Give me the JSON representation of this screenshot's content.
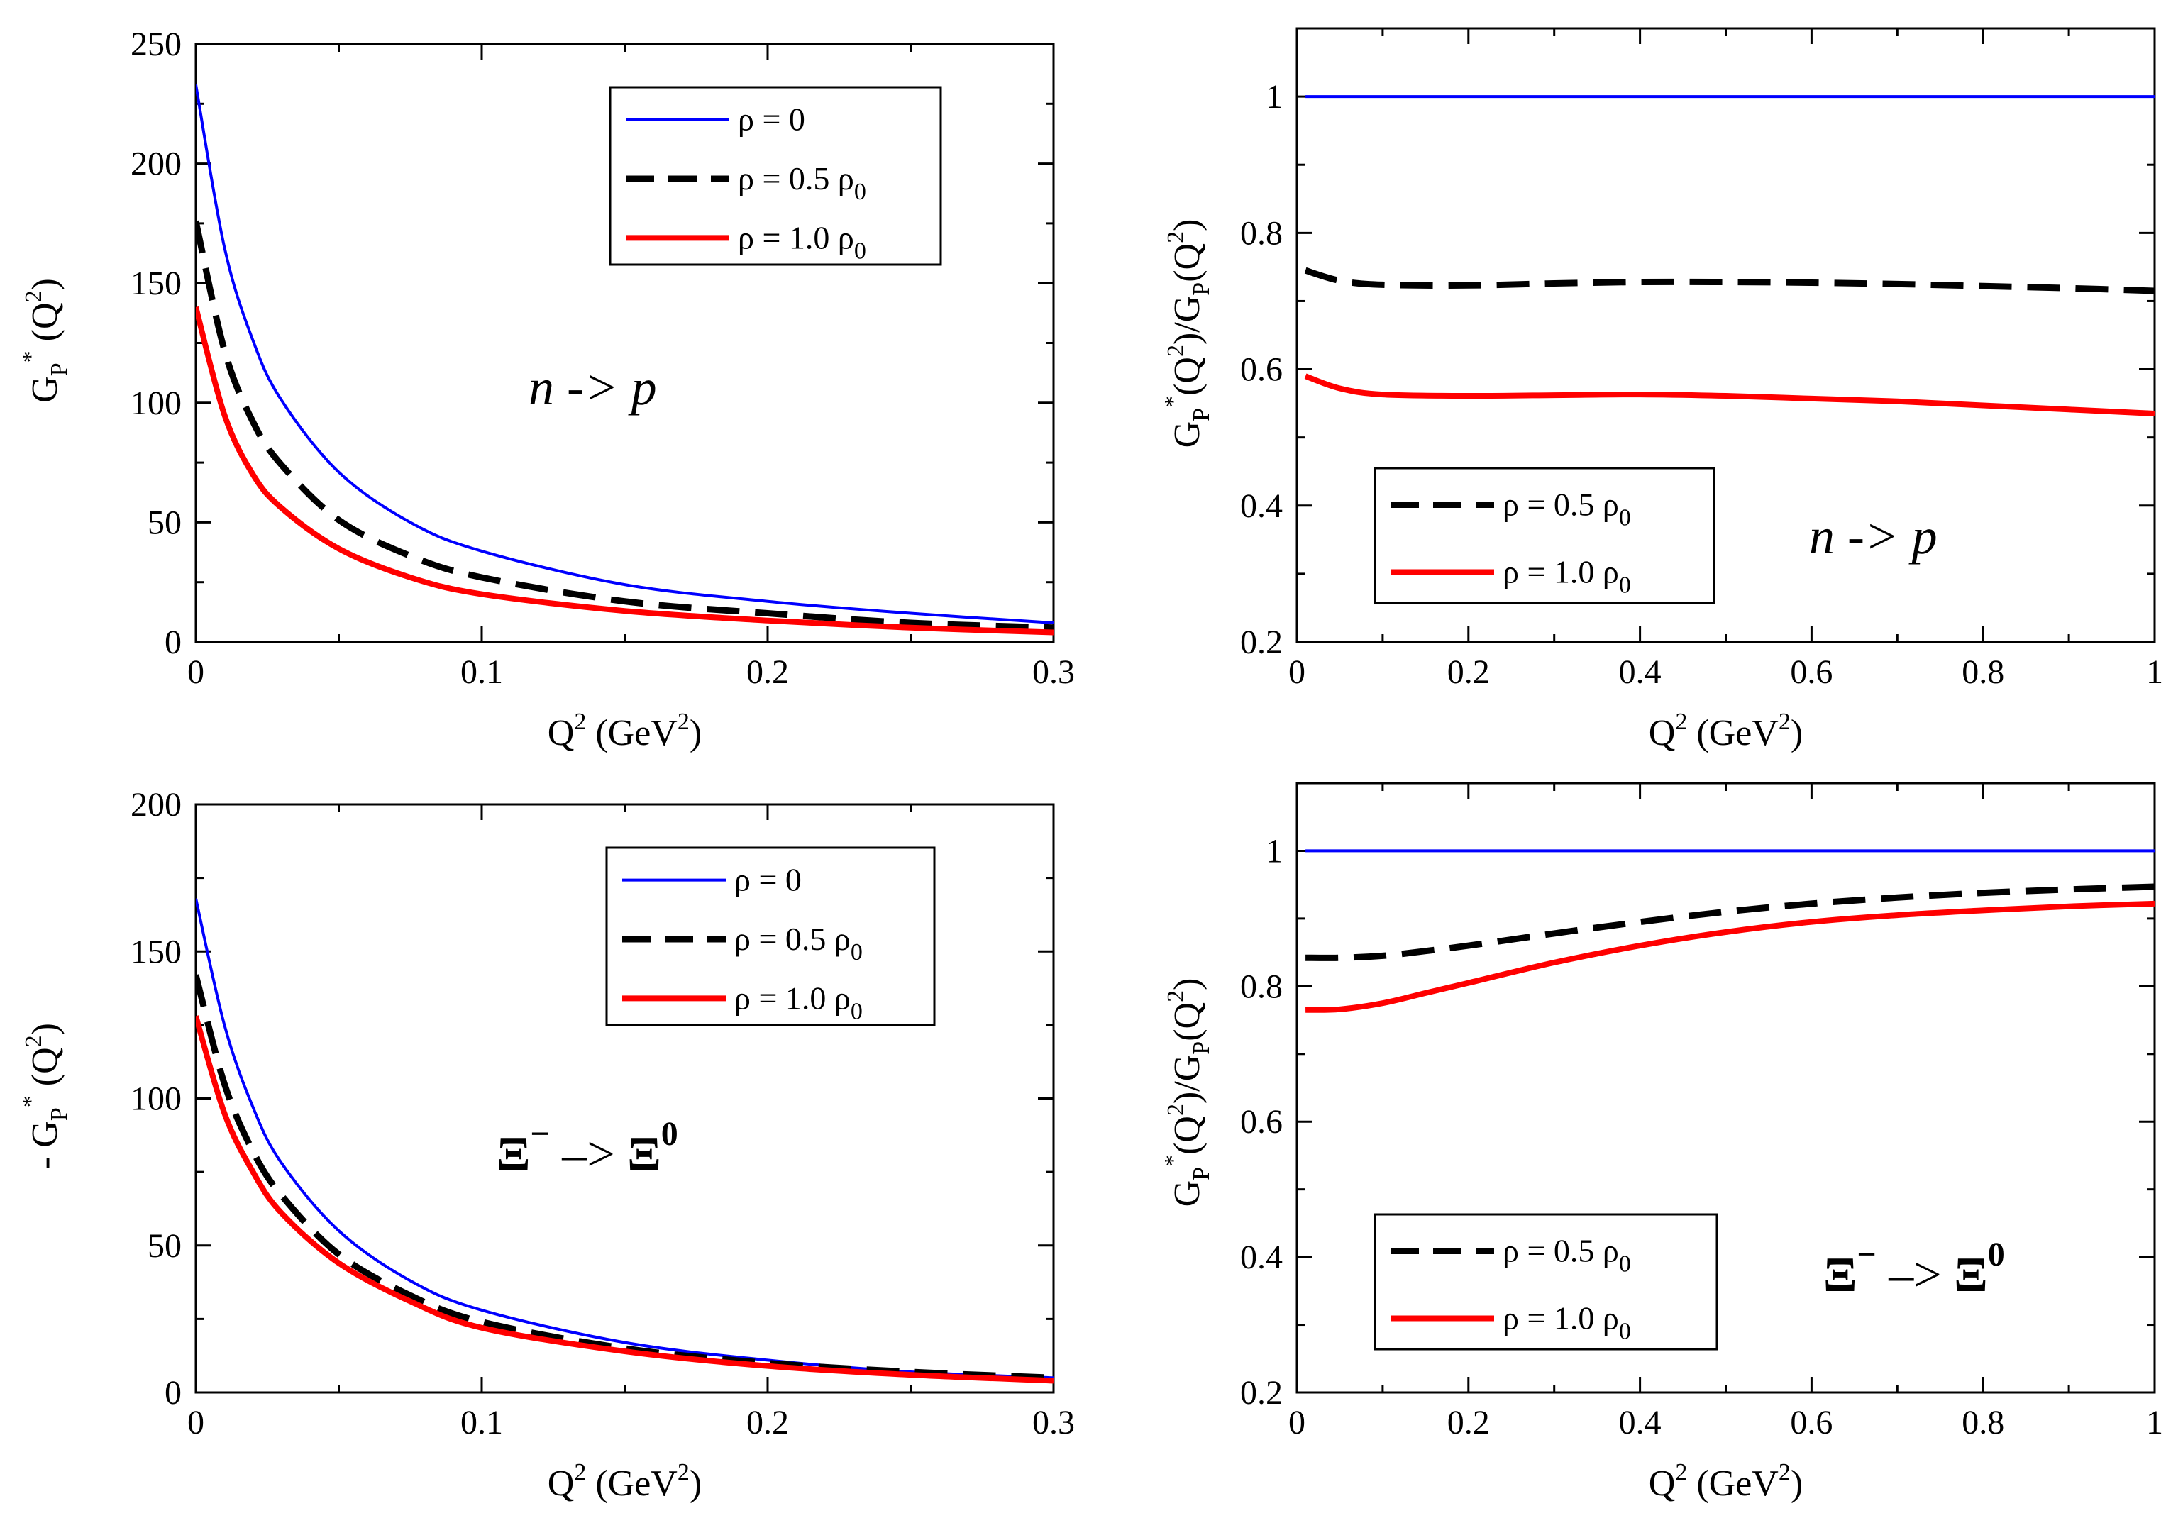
{
  "colors": {
    "rho0": "#0000ff",
    "rho05": "#000000",
    "rho10": "#ff0000"
  },
  "chart_data": [
    {
      "type": "line",
      "id": "top-left",
      "xlabel": "Q2 (GeV2)",
      "ylabel": "GP* (Q2)",
      "xlim": [
        0,
        0.3
      ],
      "ylim": [
        0,
        250
      ],
      "xticks": [
        "0",
        "0.1",
        "0.2",
        "0.3"
      ],
      "yticks": [
        "0",
        "50",
        "100",
        "150",
        "200",
        "250"
      ],
      "annotation": "n -> p",
      "legend": [
        "ρ = 0",
        "ρ = 0.5 ρ0",
        "ρ = 1.0 ρ0"
      ],
      "series": [
        {
          "name": "ρ = 0",
          "x": [
            0.0,
            0.01,
            0.02,
            0.03,
            0.05,
            0.075,
            0.1,
            0.15,
            0.2,
            0.25,
            0.3
          ],
          "y": [
            233,
            165,
            126,
            101,
            71,
            50,
            38,
            24,
            17,
            12,
            8
          ]
        },
        {
          "name": "ρ = 0.5 ρ0",
          "x": [
            0.0,
            0.01,
            0.02,
            0.03,
            0.05,
            0.075,
            0.1,
            0.15,
            0.2,
            0.25,
            0.3
          ],
          "y": [
            176,
            122,
            92,
            74,
            51,
            36,
            27,
            17,
            12,
            8,
            6
          ]
        },
        {
          "name": "ρ = 1.0 ρ0",
          "x": [
            0.0,
            0.01,
            0.02,
            0.03,
            0.05,
            0.075,
            0.1,
            0.15,
            0.2,
            0.25,
            0.3
          ],
          "y": [
            140,
            95,
            70,
            56,
            39,
            27,
            20,
            13,
            9,
            6,
            4
          ]
        }
      ]
    },
    {
      "type": "line",
      "id": "top-right",
      "xlabel": "Q2 (GeV2)",
      "ylabel": "GP* (Q2)/GP(Q2)",
      "xlim": [
        0,
        1
      ],
      "ylim": [
        0.2,
        1.1
      ],
      "xticks": [
        "0",
        "0.2",
        "0.4",
        "0.6",
        "0.8",
        "1"
      ],
      "yticks": [
        "0.2",
        "0.4",
        "0.6",
        "0.8",
        "1"
      ],
      "annotation": "n ->  p",
      "legend": [
        "ρ = 0.5 ρ0",
        "ρ = 1.0 ρ0"
      ],
      "series": [
        {
          "name": "ρ = 0",
          "x": [
            0.01,
            1.0
          ],
          "y": [
            1.0,
            1.0
          ]
        },
        {
          "name": "ρ = 0.5 ρ0",
          "x": [
            0.01,
            0.05,
            0.1,
            0.2,
            0.3,
            0.4,
            0.5,
            0.6,
            0.7,
            0.8,
            0.9,
            1.0
          ],
          "y": [
            0.745,
            0.73,
            0.724,
            0.723,
            0.726,
            0.728,
            0.728,
            0.727,
            0.725,
            0.722,
            0.719,
            0.715
          ]
        },
        {
          "name": "ρ = 1.0 ρ0",
          "x": [
            0.01,
            0.05,
            0.1,
            0.2,
            0.3,
            0.4,
            0.5,
            0.6,
            0.7,
            0.8,
            0.9,
            1.0
          ],
          "y": [
            0.59,
            0.572,
            0.563,
            0.561,
            0.562,
            0.563,
            0.561,
            0.557,
            0.553,
            0.547,
            0.541,
            0.535
          ]
        }
      ]
    },
    {
      "type": "line",
      "id": "bottom-left",
      "xlabel": "Q2 (GeV2)",
      "ylabel": "- GP* (Q2)",
      "xlim": [
        0,
        0.3
      ],
      "ylim": [
        0,
        200
      ],
      "xticks": [
        "0",
        "0.1",
        "0.2",
        "0.3"
      ],
      "yticks": [
        "0",
        "50",
        "100",
        "150",
        "200"
      ],
      "annotation": "Ξ- -> Ξ0",
      "legend": [
        "ρ = 0",
        "ρ = 0.5 ρ0",
        "ρ = 1.0 ρ0"
      ],
      "series": [
        {
          "name": "ρ = 0",
          "x": [
            0.0,
            0.01,
            0.02,
            0.03,
            0.05,
            0.075,
            0.1,
            0.15,
            0.2,
            0.25,
            0.3
          ],
          "y": [
            168,
            125,
            97,
            78,
            55,
            38,
            28,
            17,
            11,
            7,
            5
          ]
        },
        {
          "name": "ρ = 0.5 ρ0",
          "x": [
            0.0,
            0.01,
            0.02,
            0.03,
            0.05,
            0.075,
            0.1,
            0.15,
            0.2,
            0.25,
            0.3
          ],
          "y": [
            142,
            105,
            82,
            67,
            47,
            33,
            24,
            15,
            10,
            7,
            5
          ]
        },
        {
          "name": "ρ = 1.0 ρ0",
          "x": [
            0.0,
            0.01,
            0.02,
            0.03,
            0.05,
            0.075,
            0.1,
            0.15,
            0.2,
            0.25,
            0.3
          ],
          "y": [
            128,
            95,
            75,
            61,
            44,
            31,
            22,
            14,
            9,
            6,
            4
          ]
        }
      ]
    },
    {
      "type": "line",
      "id": "bottom-right",
      "xlabel": "Q2 (GeV2)",
      "ylabel": "GP* (Q2)/GP(Q2)",
      "xlim": [
        0,
        1
      ],
      "ylim": [
        0.2,
        1.1
      ],
      "xticks": [
        "0",
        "0.2",
        "0.4",
        "0.6",
        "0.8",
        "1"
      ],
      "yticks": [
        "0.2",
        "0.4",
        "0.6",
        "0.8",
        "1"
      ],
      "annotation": "Ξ- -> Ξ0",
      "legend": [
        "ρ =  0.5 ρ0",
        "ρ = 1.0 ρ0"
      ],
      "series": [
        {
          "name": "ρ = 0",
          "x": [
            0.01,
            1.0
          ],
          "y": [
            1.0,
            1.0
          ]
        },
        {
          "name": "ρ = 0.5 ρ0",
          "x": [
            0.01,
            0.05,
            0.1,
            0.15,
            0.2,
            0.3,
            0.4,
            0.5,
            0.6,
            0.7,
            0.8,
            0.9,
            1.0
          ],
          "y": [
            0.842,
            0.842,
            0.845,
            0.852,
            0.86,
            0.878,
            0.895,
            0.91,
            0.922,
            0.931,
            0.938,
            0.943,
            0.947
          ]
        },
        {
          "name": "ρ = 1.0 ρ0",
          "x": [
            0.01,
            0.05,
            0.1,
            0.15,
            0.2,
            0.3,
            0.4,
            0.5,
            0.6,
            0.7,
            0.8,
            0.9,
            1.0
          ],
          "y": [
            0.765,
            0.766,
            0.775,
            0.79,
            0.805,
            0.835,
            0.86,
            0.88,
            0.895,
            0.905,
            0.912,
            0.918,
            0.922
          ]
        }
      ]
    }
  ]
}
